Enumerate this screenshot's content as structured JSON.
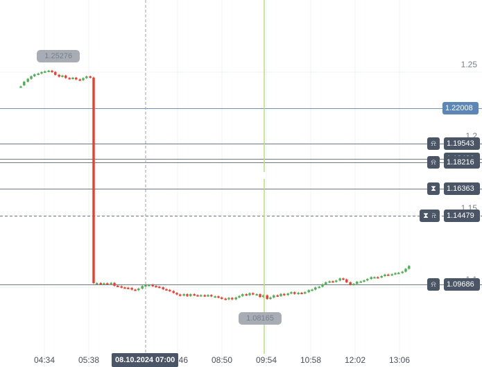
{
  "chart_data": {
    "type": "line",
    "title": "",
    "y_axis": {
      "range": [
        1.055,
        1.275
      ],
      "ticks": [
        "1.25",
        "1.2",
        "1.15",
        "1.1"
      ],
      "tick_values": [
        1.25,
        1.2,
        1.15,
        1.1
      ]
    },
    "x_axis": {
      "ticks": [
        "04:34",
        "05:38",
        "07:46",
        "08:50",
        "09:54",
        "10:58",
        "12:02",
        "13:06"
      ],
      "tick_hours": [
        4.5667,
        5.6333,
        7.7667,
        8.8333,
        9.9,
        10.9667,
        12.0333,
        13.1
      ],
      "range": [
        4.0,
        13.5
      ],
      "cursor_label": "08.10.2024 07:00",
      "cursor_hour": 7.0
    },
    "series": [
      {
        "candles": [
          [
            4.0,
            1.235,
            1.2352
          ],
          [
            4.08,
            1.236,
            1.2385
          ],
          [
            4.17,
            1.2385,
            1.2405
          ],
          [
            4.25,
            1.2405,
            1.2423
          ],
          [
            4.33,
            1.2423,
            1.2436
          ],
          [
            4.42,
            1.2436,
            1.2442
          ],
          [
            4.5,
            1.2442,
            1.2452
          ],
          [
            4.58,
            1.2452,
            1.2457
          ],
          [
            4.67,
            1.2457,
            1.2462
          ],
          [
            4.75,
            1.2462,
            1.2453
          ],
          [
            4.83,
            1.2453,
            1.2433
          ],
          [
            4.92,
            1.2433,
            1.242
          ],
          [
            5.0,
            1.242,
            1.2428
          ],
          [
            5.08,
            1.2428,
            1.2411
          ],
          [
            5.17,
            1.2411,
            1.2406
          ],
          [
            5.25,
            1.2406,
            1.2413
          ],
          [
            5.33,
            1.2413,
            1.2401
          ],
          [
            5.42,
            1.2401,
            1.2396
          ],
          [
            5.5,
            1.2396,
            1.241
          ],
          [
            5.58,
            1.241,
            1.2422
          ],
          [
            5.67,
            1.2422,
            1.2414
          ],
          [
            5.75,
            1.2414,
            1.098
          ],
          [
            5.83,
            1.098,
            1.0981
          ],
          [
            5.92,
            1.0981,
            1.0975
          ],
          [
            6.0,
            1.0975,
            1.0979
          ],
          [
            6.08,
            1.0979,
            1.0973
          ],
          [
            6.17,
            1.0973,
            1.0982
          ],
          [
            6.25,
            1.0982,
            1.0962
          ],
          [
            6.33,
            1.0962,
            1.0958
          ],
          [
            6.42,
            1.0958,
            1.095
          ],
          [
            6.5,
            1.095,
            1.0948
          ],
          [
            6.58,
            1.0948,
            1.0946
          ],
          [
            6.67,
            1.0946,
            1.0935
          ],
          [
            6.75,
            1.0935,
            1.0931
          ],
          [
            6.83,
            1.0931,
            1.0942
          ],
          [
            6.92,
            1.0942,
            1.096
          ],
          [
            7.0,
            1.096,
            1.0966
          ],
          [
            7.08,
            1.0966,
            1.0968
          ],
          [
            7.17,
            1.0968,
            1.096
          ],
          [
            7.25,
            1.096,
            1.0955
          ],
          [
            7.33,
            1.0955,
            1.0951
          ],
          [
            7.42,
            1.0951,
            1.0938
          ],
          [
            7.5,
            1.0938,
            1.0933
          ],
          [
            7.58,
            1.0933,
            1.0925
          ],
          [
            7.67,
            1.0925,
            1.0912
          ],
          [
            7.75,
            1.0912,
            1.0901
          ],
          [
            7.83,
            1.0901,
            1.0893
          ],
          [
            7.92,
            1.0893,
            1.0903
          ],
          [
            8.0,
            1.0903,
            1.089
          ],
          [
            8.08,
            1.089,
            1.0903
          ],
          [
            8.17,
            1.0903,
            1.0896
          ],
          [
            8.25,
            1.0896,
            1.0893
          ],
          [
            8.33,
            1.0893,
            1.0896
          ],
          [
            8.42,
            1.0896,
            1.089
          ],
          [
            8.5,
            1.089,
            1.0897
          ],
          [
            8.58,
            1.0897,
            1.0888
          ],
          [
            8.67,
            1.0888,
            1.0888
          ],
          [
            8.75,
            1.0888,
            1.088
          ],
          [
            8.83,
            1.088,
            1.0872
          ],
          [
            8.92,
            1.0872,
            1.0867
          ],
          [
            9.0,
            1.0867,
            1.0877
          ],
          [
            9.08,
            1.0877,
            1.0867
          ],
          [
            9.17,
            1.0867,
            1.088
          ],
          [
            9.25,
            1.088,
            1.089
          ],
          [
            9.33,
            1.089,
            1.0903
          ],
          [
            9.42,
            1.0903,
            1.0896
          ],
          [
            9.5,
            1.0896,
            1.091
          ],
          [
            9.58,
            1.091,
            1.0902
          ],
          [
            9.67,
            1.0902,
            1.0903
          ],
          [
            9.75,
            1.0903,
            1.0883
          ],
          [
            9.83,
            1.0883,
            1.0895
          ],
          [
            9.92,
            1.0895,
            1.087
          ],
          [
            10.0,
            1.087,
            1.088
          ],
          [
            10.08,
            1.088,
            1.0895
          ],
          [
            10.17,
            1.0895,
            1.089
          ],
          [
            10.25,
            1.089,
            1.0905
          ],
          [
            10.33,
            1.0905,
            1.0897
          ],
          [
            10.42,
            1.0897,
            1.0908
          ],
          [
            10.5,
            1.0908,
            1.0917
          ],
          [
            10.58,
            1.0917,
            1.0905
          ],
          [
            10.67,
            1.0905,
            1.0913
          ],
          [
            10.75,
            1.0913,
            1.0908
          ],
          [
            10.83,
            1.0908,
            1.0917
          ],
          [
            10.92,
            1.0917,
            1.0931
          ],
          [
            11.0,
            1.0931,
            1.0935
          ],
          [
            11.08,
            1.0935,
            1.095
          ],
          [
            11.17,
            1.095,
            1.0955
          ],
          [
            11.25,
            1.0955,
            1.0972
          ],
          [
            11.33,
            1.0972,
            1.0986
          ],
          [
            11.42,
            1.0986,
            1.0993
          ],
          [
            11.5,
            1.0993,
            1.099
          ],
          [
            11.58,
            1.099,
            1.0998
          ],
          [
            11.67,
            1.0998,
            1.1013
          ],
          [
            11.75,
            1.1013,
            1.1006
          ],
          [
            11.83,
            1.1006,
            1.0986
          ],
          [
            11.92,
            1.0986,
            1.097
          ],
          [
            12.0,
            1.097,
            1.0975
          ],
          [
            12.08,
            1.0975,
            1.099
          ],
          [
            12.17,
            1.099,
            1.0992
          ],
          [
            12.25,
            1.0992,
            1.0999
          ],
          [
            12.33,
            1.0999,
            1.1009
          ],
          [
            12.42,
            1.1009,
            1.1022
          ],
          [
            12.5,
            1.1022,
            1.1022
          ],
          [
            12.58,
            1.1022,
            1.102
          ],
          [
            12.67,
            1.102,
            1.1029
          ],
          [
            12.75,
            1.1029,
            1.104
          ],
          [
            12.83,
            1.104,
            1.1038
          ],
          [
            12.92,
            1.1038,
            1.1042
          ],
          [
            13.0,
            1.1042,
            1.105
          ],
          [
            13.08,
            1.105,
            1.1052
          ],
          [
            13.17,
            1.1052,
            1.106
          ],
          [
            13.25,
            1.106,
            1.108
          ],
          [
            13.33,
            1.108,
            1.11
          ]
        ]
      }
    ],
    "high_marker": {
      "label": "1.25276",
      "hour": 4.92,
      "value": 1.25276
    },
    "low_marker": {
      "label": "1.08165",
      "hour": 9.85,
      "value": 1.08165
    },
    "vertical_line_hour": 9.85,
    "cursor_hour": 7.0,
    "dashed_level": 1.14479
  },
  "price_lines": [
    {
      "label": "1.22008",
      "value": 1.22008,
      "icon": "",
      "style": "blue"
    },
    {
      "label": "1.19543",
      "value": 1.19543,
      "icon": "bell-icon",
      "style": "dark"
    },
    {
      "label": "1.18486",
      "value": 1.18486,
      "icon": "",
      "style": "dark"
    },
    {
      "label": "1.18216",
      "value": 1.18216,
      "icon": "bell-icon",
      "style": "dark"
    },
    {
      "label": "1.16363",
      "value": 1.16363,
      "icon": "hourglass-icon",
      "style": "dark"
    },
    {
      "label": "1.14479",
      "value": 1.14479,
      "icon": "bell-icon",
      "style": "dark",
      "extra_icon": "hourglass-icon"
    },
    {
      "label": "1.09686",
      "value": 1.09686,
      "icon": "bell-icon",
      "style": "dark"
    }
  ],
  "colors": {
    "up": "#4caf50",
    "down": "#ef3b2c",
    "grid": "#eef0f3",
    "level_line": "#4a5666",
    "blue_line": "#5b86b5",
    "vertical_line": "#b6e07a"
  }
}
